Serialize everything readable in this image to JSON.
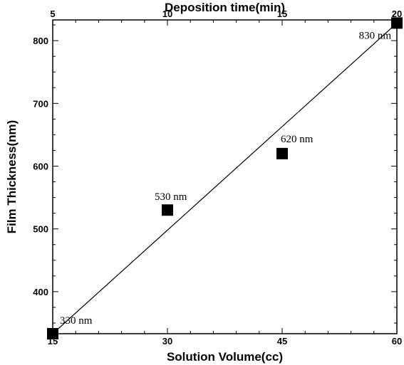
{
  "chart_data": {
    "type": "scatter",
    "xlabel": "Solution Volume(cc)",
    "ylabel": "Film Thickness(nm)",
    "x2label": "Deposition time(min)",
    "xlim": [
      15,
      60
    ],
    "ylim": [
      333,
      833
    ],
    "x2lim": [
      5,
      20
    ],
    "xticks": [
      15,
      30,
      45,
      60
    ],
    "yticks": [
      400,
      500,
      600,
      700,
      800
    ],
    "x2ticks": [
      5,
      10,
      15,
      20
    ],
    "points": {
      "x": [
        15,
        30,
        45,
        60
      ],
      "y": [
        333,
        530,
        620,
        828
      ]
    },
    "point_labels": [
      "330 nm",
      "530 nm",
      "620 nm",
      "830 nm"
    ],
    "fit_line": {
      "x": [
        15,
        60
      ],
      "y": [
        333,
        828
      ]
    },
    "grid": false,
    "legend": "none",
    "marker": "filled-square",
    "colors": {
      "marker": "#000000",
      "line": "#000000"
    }
  }
}
